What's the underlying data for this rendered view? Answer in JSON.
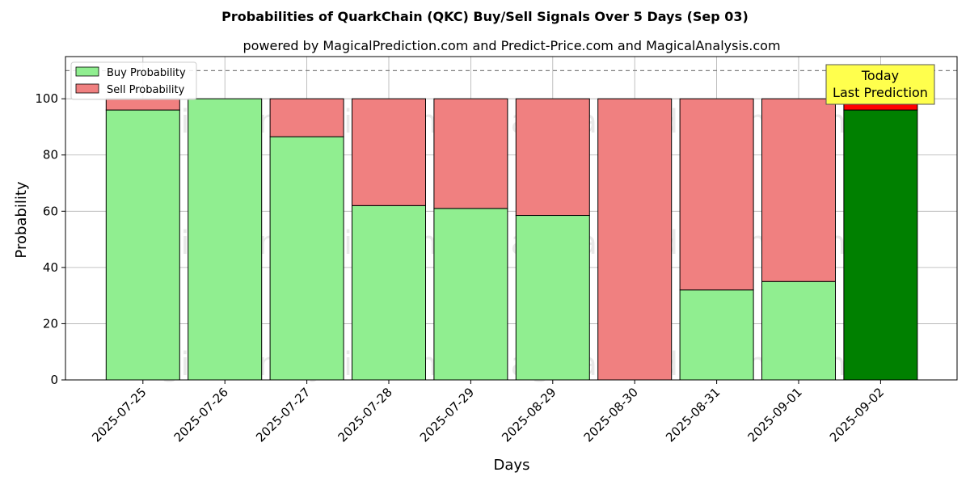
{
  "chart_data": {
    "type": "bar",
    "title": "Probabilities of QuarkChain (QKC) Buy/Sell Signals Over 5 Days (Sep 03)",
    "subtitle": "powered by MagicalPrediction.com and Predict-Price.com and MagicalAnalysis.com",
    "xlabel": "Days",
    "ylabel": "Probability",
    "ylim": [
      0,
      115
    ],
    "yticks": [
      0,
      20,
      40,
      60,
      80,
      100
    ],
    "grid": true,
    "legend_position": "top-left",
    "categories": [
      "2025-07-25",
      "2025-07-26",
      "2025-07-27",
      "2025-07-28",
      "2025-07-29",
      "2025-08-29",
      "2025-08-30",
      "2025-08-31",
      "2025-09-01",
      "2025-09-02"
    ],
    "series": [
      {
        "name": "Buy Probability",
        "color": "#90ee90",
        "highlight_color": "#008000",
        "values": [
          96,
          100,
          86.5,
          62,
          61,
          58.5,
          0,
          32,
          35,
          96
        ]
      },
      {
        "name": "Sell Probability",
        "color": "#f08080",
        "highlight_color": "#ff0000",
        "values": [
          4,
          0,
          13.5,
          38,
          39,
          41.5,
          100,
          68,
          65,
          4
        ]
      }
    ],
    "highlight_category": "2025-09-02",
    "reference_line": {
      "value": 110,
      "style": "dashed"
    },
    "annotation": {
      "line1": "Today",
      "line2": "Last Prediction",
      "background": "#ffff4d"
    },
    "watermarks": [
      "MagicalAnalysis.com",
      "MagicalPrediction.com"
    ]
  }
}
